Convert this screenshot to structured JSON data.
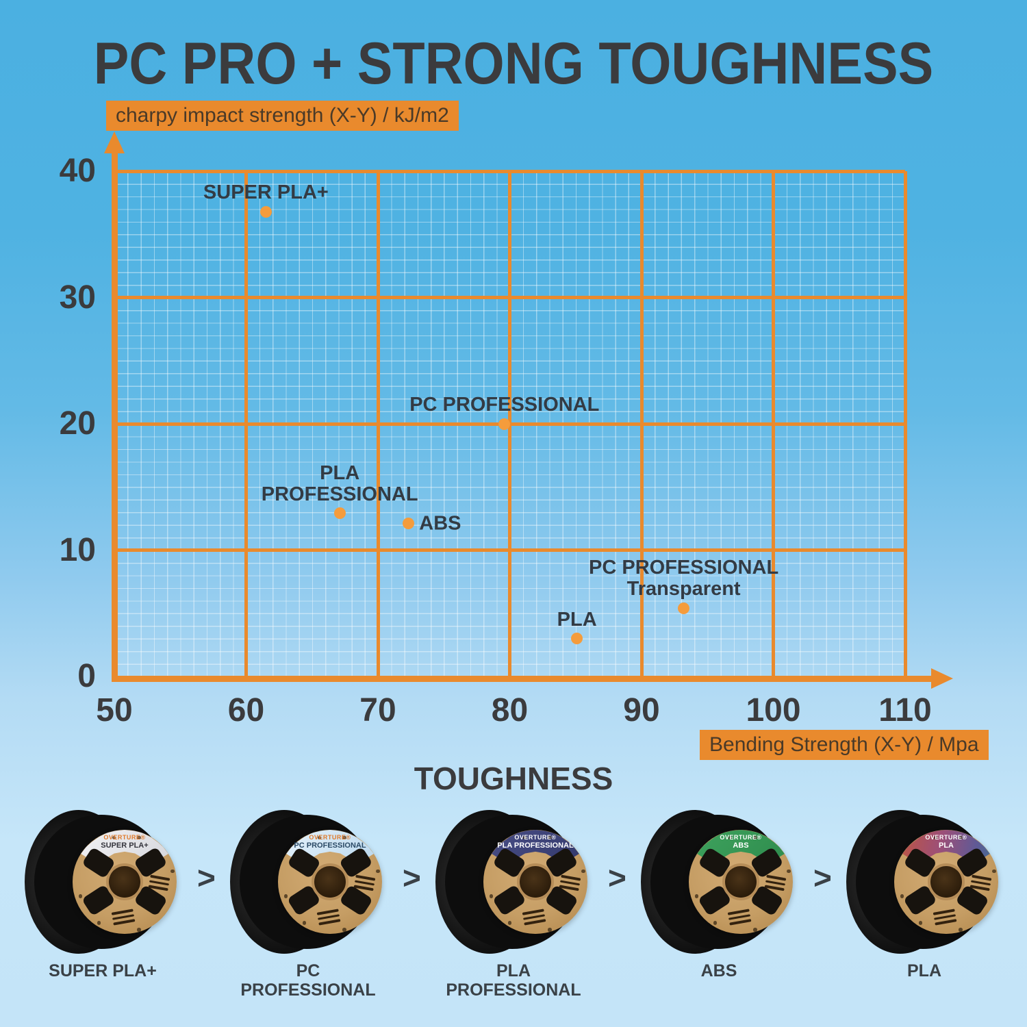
{
  "title": "PC PRO + STRONG TOUGHNESS",
  "chart_data": {
    "type": "scatter",
    "title": "PC PRO + STRONG TOUGHNESS",
    "xlabel": "Bending Strength (X-Y) / Mpa",
    "ylabel": "charpy impact strength (X-Y) / kJ/m2",
    "xlim": [
      50,
      113
    ],
    "ylim": [
      0,
      42
    ],
    "x_ticks": [
      50,
      60,
      70,
      80,
      90,
      100,
      110
    ],
    "y_ticks": [
      0,
      10,
      20,
      30,
      40
    ],
    "grid": "orange major every 10 units, white minor every 1 unit",
    "legend_position": "none",
    "points": [
      {
        "name": "SUPER PLA+",
        "x": 61.5,
        "y": 36.8,
        "label_lines": [
          "SUPER PLA+"
        ],
        "label_side": "above"
      },
      {
        "name": "PC PROFESSIONAL",
        "x": 79.6,
        "y": 20.0,
        "label_lines": [
          "PC PROFESSIONAL"
        ],
        "label_side": "above"
      },
      {
        "name": "PLA PROFESSIONAL",
        "x": 67.1,
        "y": 12.9,
        "label_lines": [
          "PLA",
          "PROFESSIONAL"
        ],
        "label_side": "above"
      },
      {
        "name": "ABS",
        "x": 72.3,
        "y": 12.1,
        "label_lines": [
          "ABS"
        ],
        "label_side": "right"
      },
      {
        "name": "PC PROFESSIONAL Transparent",
        "x": 93.2,
        "y": 5.4,
        "label_lines": [
          "PC PROFESSIONAL",
          "Transparent"
        ],
        "label_side": "above"
      },
      {
        "name": "PLA",
        "x": 85.1,
        "y": 3.0,
        "label_lines": [
          "PLA"
        ],
        "label_side": "above"
      }
    ],
    "colors": {
      "axis_orange": "#E98A2D",
      "dot_orange": "#F59C3C",
      "minor_grid": "rgba(255,255,255,0.42)",
      "title_text": "#3B3B3D",
      "tick_text": "#3B3B3D",
      "point_label_text": "#333B44",
      "axis_box_text": "#4A3A28",
      "background_top": "#4BB0E1",
      "background_bottom": "#C4E4F8"
    }
  },
  "toughness": {
    "heading": "TOUGHNESS",
    "separator": ">",
    "items": [
      {
        "name": "SUPER PLA+",
        "brand": "OVERTURE®",
        "caption_lines": [
          "SUPER PLA+"
        ],
        "label_bg": "linear-gradient(135deg,#f4f4f6 0%,#d9dadf 55%,#c4c6ce 100%)",
        "label_fg": "#34343c",
        "brand_fg": "#e07a2a"
      },
      {
        "name": "PC PROFESSIONAL",
        "brand": "OVERTURE®",
        "caption_lines": [
          "PC",
          "PROFESSIONAL"
        ],
        "label_bg": "linear-gradient(135deg,#e8f3fb 0%,#bcd9ee 60%,#9cc4e2 100%)",
        "label_fg": "#2b4a66",
        "brand_fg": "#e07a2a"
      },
      {
        "name": "PLA PROFESSIONAL",
        "brand": "OVERTURE®",
        "caption_lines": [
          "PLA",
          "PROFESSIONAL"
        ],
        "label_bg": "linear-gradient(135deg,#4a4f86 0%,#343a6e 60%,#262b55 100%)",
        "label_fg": "#ffffff",
        "brand_fg": "#ffffff"
      },
      {
        "name": "ABS",
        "brand": "OVERTURE®",
        "caption_lines": [
          "ABS"
        ],
        "label_bg": "linear-gradient(135deg,#3fa35e 0%,#2f8d4e 60%,#23703c 100%)",
        "label_fg": "#ffffff",
        "brand_fg": "#ffffff"
      },
      {
        "name": "PLA",
        "brand": "OVERTURE®",
        "caption_lines": [
          "PLA"
        ],
        "label_bg": "linear-gradient(100deg,#c2563a 0%,#9c4f78 40%,#5e5a96 70%,#2e7f8c 100%)",
        "label_fg": "#ffffff",
        "brand_fg": "#ffffff"
      }
    ]
  }
}
